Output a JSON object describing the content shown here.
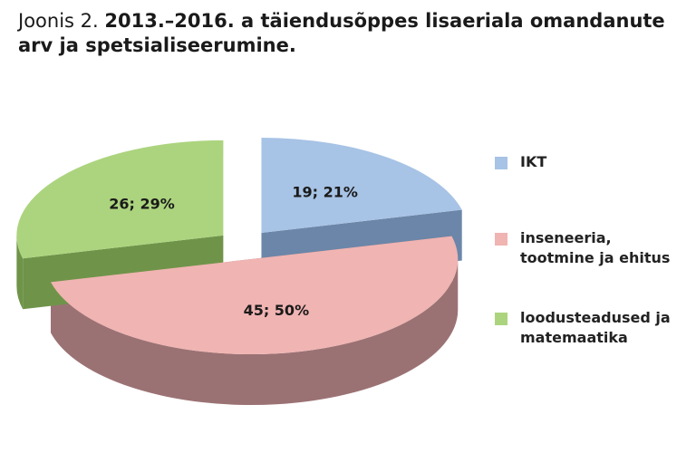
{
  "caption": {
    "prefix": "Joonis 2.",
    "title": "2013.–2016. a täiendusõppes lisaeriala omandanute arv ja spetsialiseerumine."
  },
  "chart_data": {
    "type": "pie",
    "style": "3d-exploded",
    "slices": [
      {
        "name": "IKT",
        "value": 19,
        "percent": 21,
        "label": "19; 21%",
        "color": "#a7c3e5",
        "side_color": "#6b86a8"
      },
      {
        "name": "inseneeria, tootmine ja ehitus",
        "value": 45,
        "percent": 50,
        "label": "45; 50%",
        "color": "#f0b4b2",
        "side_color": "#9b7274"
      },
      {
        "name": "loodusteadused ja matemaatika",
        "value": 26,
        "percent": 29,
        "label": "26; 29%",
        "color": "#acd47e",
        "side_color": "#6f9449"
      }
    ],
    "legend": {
      "position": "right",
      "items": [
        "IKT",
        "inseneeria, tootmine ja ehitus",
        "loodusteadused ja matemaatika"
      ]
    }
  }
}
